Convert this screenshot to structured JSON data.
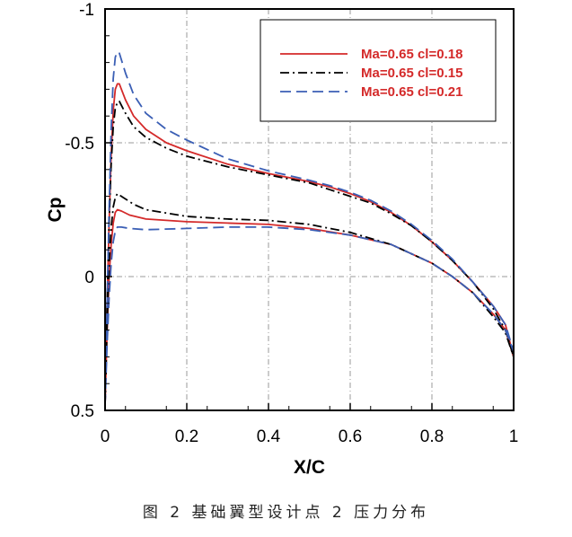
{
  "caption": "图 2 基础翼型设计点 2 压力分布",
  "chart_data": {
    "type": "line",
    "xlabel": "X/C",
    "ylabel": "Cp",
    "xlim": [
      0,
      1
    ],
    "ylim": [
      0.5,
      -1
    ],
    "y_inverted": true,
    "x_ticks": [
      0,
      0.2,
      0.4,
      0.6,
      0.8,
      1
    ],
    "x_tick_labels": [
      "0",
      "0.2",
      "0.4",
      "0.6",
      "0.8",
      "1"
    ],
    "y_ticks": [
      -1,
      -0.5,
      0,
      0.5
    ],
    "y_tick_labels": [
      "-1",
      "-0.5",
      "0",
      "0.5"
    ],
    "grid": true,
    "legend_position": "top-right",
    "series": [
      {
        "name": "Ma=0.65 cl=0.18",
        "color": "#d42a2a",
        "dash": "solid",
        "upper": [
          [
            0,
            0.48
          ],
          [
            0.005,
            0.1
          ],
          [
            0.01,
            -0.2
          ],
          [
            0.015,
            -0.45
          ],
          [
            0.02,
            -0.62
          ],
          [
            0.025,
            -0.7
          ],
          [
            0.03,
            -0.72
          ],
          [
            0.035,
            -0.72
          ],
          [
            0.04,
            -0.7
          ],
          [
            0.05,
            -0.66
          ],
          [
            0.07,
            -0.6
          ],
          [
            0.1,
            -0.55
          ],
          [
            0.15,
            -0.5
          ],
          [
            0.2,
            -0.47
          ],
          [
            0.3,
            -0.42
          ],
          [
            0.4,
            -0.385
          ],
          [
            0.5,
            -0.355
          ],
          [
            0.55,
            -0.335
          ],
          [
            0.6,
            -0.31
          ],
          [
            0.65,
            -0.28
          ],
          [
            0.7,
            -0.24
          ],
          [
            0.75,
            -0.19
          ],
          [
            0.8,
            -0.13
          ],
          [
            0.85,
            -0.06
          ],
          [
            0.9,
            0.02
          ],
          [
            0.95,
            0.11
          ],
          [
            0.98,
            0.18
          ],
          [
            1,
            0.3
          ]
        ],
        "lower": [
          [
            0,
            0.48
          ],
          [
            0.005,
            0.2
          ],
          [
            0.01,
            0.0
          ],
          [
            0.015,
            -0.12
          ],
          [
            0.02,
            -0.2
          ],
          [
            0.025,
            -0.24
          ],
          [
            0.03,
            -0.25
          ],
          [
            0.04,
            -0.245
          ],
          [
            0.06,
            -0.23
          ],
          [
            0.1,
            -0.215
          ],
          [
            0.2,
            -0.205
          ],
          [
            0.3,
            -0.2
          ],
          [
            0.4,
            -0.195
          ],
          [
            0.5,
            -0.18
          ],
          [
            0.6,
            -0.155
          ],
          [
            0.7,
            -0.12
          ],
          [
            0.8,
            -0.05
          ],
          [
            0.85,
            -0.0
          ],
          [
            0.9,
            0.06
          ],
          [
            0.95,
            0.14
          ],
          [
            0.98,
            0.2
          ],
          [
            1,
            0.3
          ]
        ]
      },
      {
        "name": "Ma=0.65 cl=0.15",
        "color": "#000000",
        "dash": "dash-dot",
        "upper": [
          [
            0,
            0.48
          ],
          [
            0.005,
            0.1
          ],
          [
            0.01,
            -0.2
          ],
          [
            0.015,
            -0.42
          ],
          [
            0.02,
            -0.56
          ],
          [
            0.025,
            -0.63
          ],
          [
            0.03,
            -0.65
          ],
          [
            0.035,
            -0.655
          ],
          [
            0.04,
            -0.64
          ],
          [
            0.05,
            -0.61
          ],
          [
            0.07,
            -0.56
          ],
          [
            0.1,
            -0.52
          ],
          [
            0.15,
            -0.48
          ],
          [
            0.2,
            -0.45
          ],
          [
            0.3,
            -0.41
          ],
          [
            0.4,
            -0.38
          ],
          [
            0.5,
            -0.35
          ],
          [
            0.55,
            -0.325
          ],
          [
            0.6,
            -0.3
          ],
          [
            0.65,
            -0.275
          ],
          [
            0.7,
            -0.235
          ],
          [
            0.75,
            -0.19
          ],
          [
            0.8,
            -0.13
          ],
          [
            0.85,
            -0.06
          ],
          [
            0.9,
            0.02
          ],
          [
            0.95,
            0.12
          ],
          [
            0.98,
            0.2
          ],
          [
            1,
            0.3
          ]
        ],
        "lower": [
          [
            0,
            0.48
          ],
          [
            0.005,
            0.18
          ],
          [
            0.01,
            -0.05
          ],
          [
            0.015,
            -0.18
          ],
          [
            0.02,
            -0.26
          ],
          [
            0.025,
            -0.295
          ],
          [
            0.03,
            -0.31
          ],
          [
            0.035,
            -0.305
          ],
          [
            0.05,
            -0.29
          ],
          [
            0.07,
            -0.27
          ],
          [
            0.1,
            -0.25
          ],
          [
            0.2,
            -0.225
          ],
          [
            0.3,
            -0.215
          ],
          [
            0.4,
            -0.21
          ],
          [
            0.5,
            -0.195
          ],
          [
            0.6,
            -0.165
          ],
          [
            0.7,
            -0.12
          ],
          [
            0.8,
            -0.05
          ],
          [
            0.85,
            0.0
          ],
          [
            0.9,
            0.06
          ],
          [
            0.95,
            0.15
          ],
          [
            0.98,
            0.21
          ],
          [
            1,
            0.3
          ]
        ]
      },
      {
        "name": "Ma=0.65 cl=0.21",
        "color": "#3b5fb5",
        "dash": "dashed",
        "upper": [
          [
            0,
            0.48
          ],
          [
            0.005,
            0.1
          ],
          [
            0.01,
            -0.25
          ],
          [
            0.015,
            -0.55
          ],
          [
            0.02,
            -0.74
          ],
          [
            0.025,
            -0.82
          ],
          [
            0.03,
            -0.84
          ],
          [
            0.035,
            -0.835
          ],
          [
            0.04,
            -0.81
          ],
          [
            0.05,
            -0.76
          ],
          [
            0.07,
            -0.68
          ],
          [
            0.1,
            -0.61
          ],
          [
            0.15,
            -0.55
          ],
          [
            0.2,
            -0.51
          ],
          [
            0.3,
            -0.44
          ],
          [
            0.4,
            -0.395
          ],
          [
            0.5,
            -0.36
          ],
          [
            0.55,
            -0.34
          ],
          [
            0.6,
            -0.315
          ],
          [
            0.65,
            -0.285
          ],
          [
            0.7,
            -0.245
          ],
          [
            0.75,
            -0.195
          ],
          [
            0.8,
            -0.135
          ],
          [
            0.85,
            -0.065
          ],
          [
            0.9,
            0.02
          ],
          [
            0.95,
            0.11
          ],
          [
            0.98,
            0.18
          ],
          [
            1,
            0.28
          ]
        ],
        "lower": [
          [
            0,
            0.48
          ],
          [
            0.005,
            0.25
          ],
          [
            0.01,
            0.08
          ],
          [
            0.015,
            -0.05
          ],
          [
            0.02,
            -0.13
          ],
          [
            0.025,
            -0.17
          ],
          [
            0.03,
            -0.185
          ],
          [
            0.04,
            -0.185
          ],
          [
            0.06,
            -0.18
          ],
          [
            0.1,
            -0.175
          ],
          [
            0.2,
            -0.18
          ],
          [
            0.3,
            -0.185
          ],
          [
            0.4,
            -0.185
          ],
          [
            0.5,
            -0.175
          ],
          [
            0.6,
            -0.155
          ],
          [
            0.7,
            -0.12
          ],
          [
            0.8,
            -0.05
          ],
          [
            0.85,
            0.0
          ],
          [
            0.9,
            0.06
          ],
          [
            0.95,
            0.14
          ],
          [
            0.98,
            0.2
          ],
          [
            1,
            0.28
          ]
        ]
      }
    ]
  }
}
